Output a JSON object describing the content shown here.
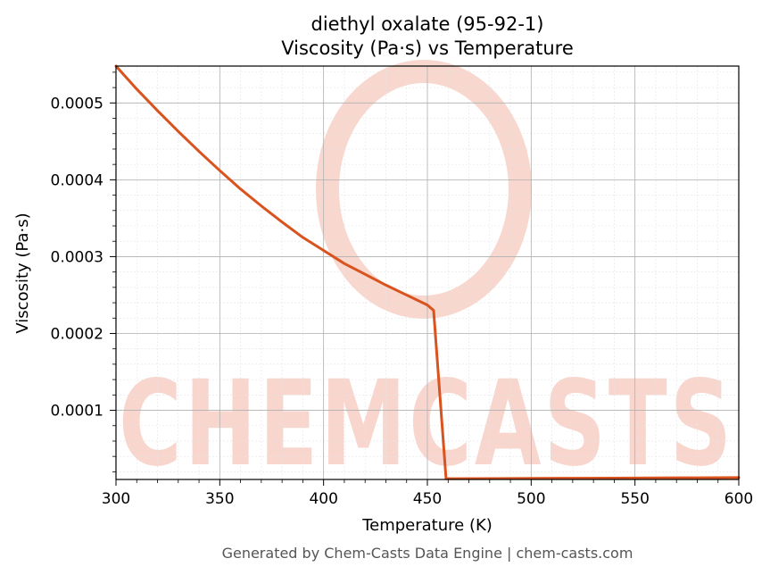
{
  "chart_data": {
    "type": "line",
    "title_line1": "diethyl oxalate (95-92-1)",
    "title_line2": "Viscosity (Pa·s) vs Temperature",
    "xlabel": "Temperature (K)",
    "ylabel": "Viscosity (Pa·s)",
    "xlim": [
      300,
      600
    ],
    "ylim": [
      1e-05,
      0.000548
    ],
    "xticks": [
      300,
      350,
      400,
      450,
      500,
      550,
      600
    ],
    "xtick_labels": [
      "300",
      "350",
      "400",
      "450",
      "500",
      "550",
      "600"
    ],
    "yticks": [
      0.0001,
      0.0002,
      0.0003,
      0.0004,
      0.0005
    ],
    "ytick_labels": [
      "0.0001",
      "0.0002",
      "0.0003",
      "0.0004",
      "0.0005"
    ],
    "grid": true,
    "series": [
      {
        "color": "#d9531e",
        "x": [
          300,
          310,
          320,
          330,
          340,
          350,
          360,
          370,
          380,
          390,
          400,
          410,
          420,
          430,
          440,
          450,
          453,
          459,
          460,
          480,
          500,
          520,
          540,
          560,
          580,
          600
        ],
        "y": [
          0.000548,
          0.000518,
          0.00049,
          0.000463,
          0.000437,
          0.000412,
          0.000388,
          0.000366,
          0.000345,
          0.000325,
          0.000308,
          0.000291,
          0.000277,
          0.000263,
          0.00025,
          0.000237,
          0.00023,
          1.1e-05,
          1.1e-05,
          1.12e-05,
          1.14e-05,
          1.16e-05,
          1.18e-05,
          1.2e-05,
          1.22e-05,
          1.24e-05
        ]
      }
    ]
  },
  "watermark": {
    "text": "CHEMCASTS",
    "color": "#f6c9be"
  },
  "footer": "Generated by Chem-Casts Data Engine | chem-casts.com"
}
